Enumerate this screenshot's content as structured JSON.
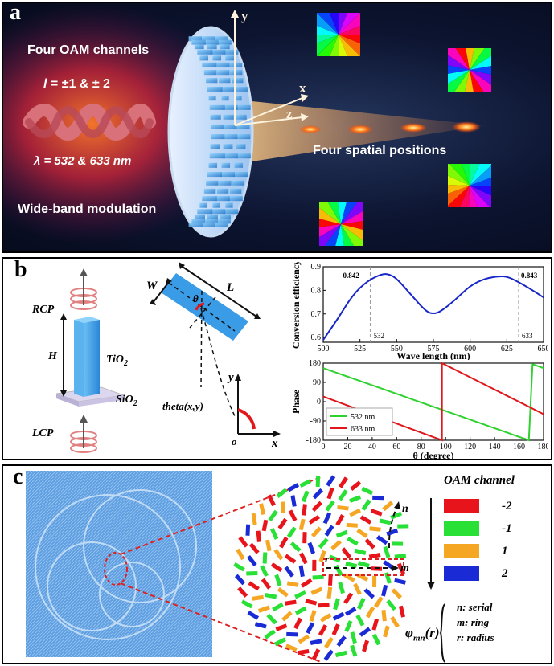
{
  "panel_a": {
    "label": "a",
    "title": "Four OAM channels",
    "l_prefix": "l",
    "l_suffix": " = ±1 & ± 2",
    "lambda_text": "λ = 532 & 633 ",
    "lambda_unit": "nm",
    "wideband": "Wide-band modulation",
    "positions": "Four spatial positions",
    "axis_y": "y",
    "axis_x": "x",
    "axis_z": "z"
  },
  "panel_b": {
    "label": "b",
    "rcp": "RCP",
    "lcp": "LCP",
    "h": "H",
    "tio2": "TiO",
    "tio2_sub": "2",
    "sio2": "SiO",
    "sio2_sub": "2",
    "w": "W",
    "l": "L",
    "theta": "θ",
    "theta_xy": "theta(x,y)",
    "o": "o",
    "x": "x",
    "y": "y"
  },
  "panel_c": {
    "label": "c",
    "legend_title": "OAM channel",
    "channels": [
      {
        "value": "-2",
        "color": "#e8141c"
      },
      {
        "value": "-1",
        "color": "#28e036"
      },
      {
        "value": "1",
        "color": "#f5a623"
      },
      {
        "value": "2",
        "color": "#1a2bd6"
      }
    ],
    "n_label": "n",
    "m_label": "m",
    "r_label": "r",
    "phi_main": "φ",
    "phi_sub": "mn",
    "phi_arg": "(r)",
    "defs": [
      "n:  serial",
      "m: ring",
      "r: radius"
    ]
  },
  "chart_data": [
    {
      "type": "line",
      "xlabel": "Wave length (nm)",
      "ylabel": "Conversion efficiency",
      "xlim": [
        500,
        650
      ],
      "ylim": [
        0.58,
        0.9
      ],
      "xticks": [
        500,
        525,
        550,
        575,
        600,
        625,
        650
      ],
      "yticks": [
        0.6,
        0.7,
        0.8,
        0.9
      ],
      "series": [
        {
          "x": [
            500,
            510,
            520,
            530,
            540,
            545,
            550,
            560,
            570,
            575,
            580,
            590,
            600,
            610,
            620,
            625,
            630,
            640,
            650
          ],
          "values": [
            0.59,
            0.68,
            0.78,
            0.84,
            0.87,
            0.868,
            0.85,
            0.78,
            0.71,
            0.7,
            0.71,
            0.76,
            0.82,
            0.85,
            0.86,
            0.858,
            0.845,
            0.81,
            0.77
          ]
        }
      ],
      "markers": [
        {
          "x": 532,
          "label": "532",
          "value_label": "0.842"
        },
        {
          "x": 633,
          "label": "633",
          "value_label": "0.843"
        }
      ],
      "line_color": "#1826c8"
    },
    {
      "type": "line",
      "xlabel": "θ (degree)",
      "ylabel": "Phase",
      "xlim": [
        0,
        180
      ],
      "ylim": [
        -180,
        180
      ],
      "xticks": [
        0,
        20,
        40,
        60,
        80,
        100,
        120,
        140,
        160,
        180
      ],
      "yticks": [
        -180,
        -90,
        0,
        90,
        180
      ],
      "series": [
        {
          "name": "532 nm",
          "color": "#2fd12f",
          "x": [
            0,
            168,
            168,
            171,
            180
          ],
          "values": [
            157,
            -180,
            -180,
            175,
            157
          ]
        },
        {
          "name": "633 nm",
          "color": "#e0161a",
          "x": [
            0,
            97,
            97,
            180,
            180
          ],
          "values": [
            24,
            -180,
            180,
            -58,
            -58
          ]
        }
      ]
    }
  ]
}
